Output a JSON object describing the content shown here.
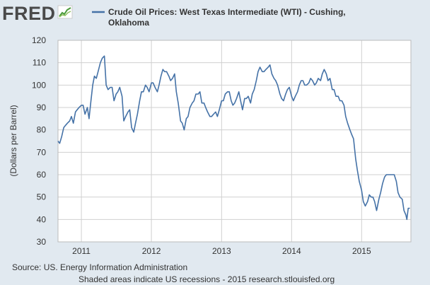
{
  "brand": {
    "logo_text": "FRED",
    "logo_icon": "fred-chart-icon"
  },
  "footer": {
    "source": "Source: US. Energy Information Administration",
    "note": "Shaded areas indicate US recessions - 2015 research.stlouisfed.org"
  },
  "colors": {
    "background": "#e1e9f0",
    "plot_background": "#ffffff",
    "line": "#4572a7",
    "grid": "#d0d0d0"
  },
  "chart_data": {
    "type": "line",
    "title": "",
    "xlabel": "",
    "ylabel": "(Dollars per Barrel)",
    "legend": {
      "position": "top",
      "entries": [
        {
          "label_line1": "Crude Oil Prices: West Texas Intermediate (WTI) - Cushing,",
          "label_line2": "Oklahoma"
        }
      ]
    },
    "ylim": [
      30,
      120
    ],
    "yticks": [
      30,
      40,
      50,
      60,
      70,
      80,
      90,
      100,
      110,
      120
    ],
    "xlim": [
      "2010-09-01",
      "2015-09-15"
    ],
    "xticks": [
      {
        "date": "2011-01-01",
        "label": "2011"
      },
      {
        "date": "2012-01-01",
        "label": "2012"
      },
      {
        "date": "2013-01-01",
        "label": "2013"
      },
      {
        "date": "2014-01-01",
        "label": "2014"
      },
      {
        "date": "2015-01-01",
        "label": "2015"
      }
    ],
    "grid": true,
    "series": [
      {
        "name": "Crude Oil Prices: West Texas Intermediate (WTI) - Cushing, Oklahoma",
        "x": [
          "2010-09-01",
          "2010-09-10",
          "2010-09-20",
          "2010-10-01",
          "2010-10-10",
          "2010-10-20",
          "2010-11-01",
          "2010-11-10",
          "2010-11-20",
          "2010-12-01",
          "2010-12-10",
          "2010-12-20",
          "2011-01-01",
          "2011-01-10",
          "2011-01-20",
          "2011-02-01",
          "2011-02-10",
          "2011-02-20",
          "2011-03-01",
          "2011-03-10",
          "2011-03-20",
          "2011-04-01",
          "2011-04-10",
          "2011-04-20",
          "2011-05-01",
          "2011-05-10",
          "2011-05-20",
          "2011-06-01",
          "2011-06-10",
          "2011-06-20",
          "2011-07-01",
          "2011-07-10",
          "2011-07-20",
          "2011-08-01",
          "2011-08-10",
          "2011-08-20",
          "2011-09-01",
          "2011-09-10",
          "2011-09-20",
          "2011-10-01",
          "2011-10-10",
          "2011-10-20",
          "2011-11-01",
          "2011-11-10",
          "2011-11-20",
          "2011-12-01",
          "2011-12-10",
          "2011-12-20",
          "2012-01-01",
          "2012-01-10",
          "2012-01-20",
          "2012-02-01",
          "2012-02-10",
          "2012-02-20",
          "2012-03-01",
          "2012-03-10",
          "2012-03-20",
          "2012-04-01",
          "2012-04-10",
          "2012-04-20",
          "2012-05-01",
          "2012-05-10",
          "2012-05-20",
          "2012-06-01",
          "2012-06-10",
          "2012-06-20",
          "2012-07-01",
          "2012-07-10",
          "2012-07-20",
          "2012-08-01",
          "2012-08-10",
          "2012-08-20",
          "2012-09-01",
          "2012-09-10",
          "2012-09-20",
          "2012-10-01",
          "2012-10-10",
          "2012-10-20",
          "2012-11-01",
          "2012-11-10",
          "2012-11-20",
          "2012-12-01",
          "2012-12-10",
          "2012-12-20",
          "2013-01-01",
          "2013-01-10",
          "2013-01-20",
          "2013-02-01",
          "2013-02-10",
          "2013-02-20",
          "2013-03-01",
          "2013-03-10",
          "2013-03-20",
          "2013-04-01",
          "2013-04-10",
          "2013-04-20",
          "2013-05-01",
          "2013-05-10",
          "2013-05-20",
          "2013-06-01",
          "2013-06-10",
          "2013-06-20",
          "2013-07-01",
          "2013-07-10",
          "2013-07-20",
          "2013-08-01",
          "2013-08-10",
          "2013-08-20",
          "2013-09-01",
          "2013-09-10",
          "2013-09-20",
          "2013-10-01",
          "2013-10-10",
          "2013-10-20",
          "2013-11-01",
          "2013-11-10",
          "2013-11-20",
          "2013-12-01",
          "2013-12-10",
          "2013-12-20",
          "2014-01-01",
          "2014-01-10",
          "2014-01-20",
          "2014-02-01",
          "2014-02-10",
          "2014-02-20",
          "2014-03-01",
          "2014-03-10",
          "2014-03-20",
          "2014-04-01",
          "2014-04-10",
          "2014-04-20",
          "2014-05-01",
          "2014-05-10",
          "2014-05-20",
          "2014-06-01",
          "2014-06-10",
          "2014-06-20",
          "2014-07-01",
          "2014-07-10",
          "2014-07-20",
          "2014-08-01",
          "2014-08-10",
          "2014-08-20",
          "2014-09-01",
          "2014-09-10",
          "2014-09-20",
          "2014-10-01",
          "2014-10-10",
          "2014-10-20",
          "2014-11-01",
          "2014-11-10",
          "2014-11-20",
          "2014-12-01",
          "2014-12-10",
          "2014-12-20",
          "2015-01-01",
          "2015-01-10",
          "2015-01-20",
          "2015-02-01",
          "2015-02-10",
          "2015-02-20",
          "2015-03-01",
          "2015-03-10",
          "2015-03-20",
          "2015-04-01",
          "2015-04-10",
          "2015-04-20",
          "2015-05-01",
          "2015-05-10",
          "2015-05-20",
          "2015-06-01",
          "2015-06-10",
          "2015-06-20",
          "2015-07-01",
          "2015-07-10",
          "2015-07-20",
          "2015-08-01",
          "2015-08-10",
          "2015-08-20",
          "2015-08-25",
          "2015-09-01",
          "2015-09-10"
        ],
        "y": [
          75,
          74,
          77,
          81,
          82,
          83,
          84,
          86,
          83,
          88,
          89,
          90,
          91,
          91,
          87,
          90,
          85,
          93,
          100,
          104,
          103,
          107,
          110,
          112,
          113,
          100,
          98,
          99,
          99,
          93,
          96,
          97,
          99,
          95,
          84,
          86,
          88,
          89,
          81,
          79,
          83,
          87,
          93,
          97,
          97,
          100,
          99,
          97,
          101,
          101,
          99,
          97,
          100,
          104,
          107,
          106,
          106,
          104,
          102,
          103,
          105,
          97,
          92,
          84,
          83,
          80,
          85,
          86,
          90,
          92,
          93,
          96,
          96,
          97,
          92,
          92,
          90,
          88,
          86,
          86,
          87,
          88,
          86,
          89,
          93,
          93,
          96,
          97,
          97,
          93,
          91,
          92,
          94,
          97,
          93,
          89,
          94,
          94,
          95,
          92,
          96,
          98,
          102,
          106,
          108,
          106,
          106,
          107,
          108,
          109,
          105,
          103,
          102,
          100,
          96,
          94,
          93,
          96,
          98,
          99,
          95,
          93,
          95,
          97,
          100,
          102,
          102,
          100,
          100,
          101,
          103,
          102,
          100,
          101,
          103,
          102,
          105,
          107,
          105,
          102,
          103,
          98,
          98,
          95,
          95,
          93,
          93,
          91,
          86,
          83,
          80,
          78,
          76,
          67,
          62,
          57,
          53,
          48,
          46,
          48,
          51,
          50,
          50,
          48,
          44,
          49,
          52,
          56,
          59,
          60,
          60,
          60,
          60,
          60,
          57,
          52,
          50,
          49,
          44,
          42,
          40,
          45,
          45
        ]
      }
    ]
  }
}
